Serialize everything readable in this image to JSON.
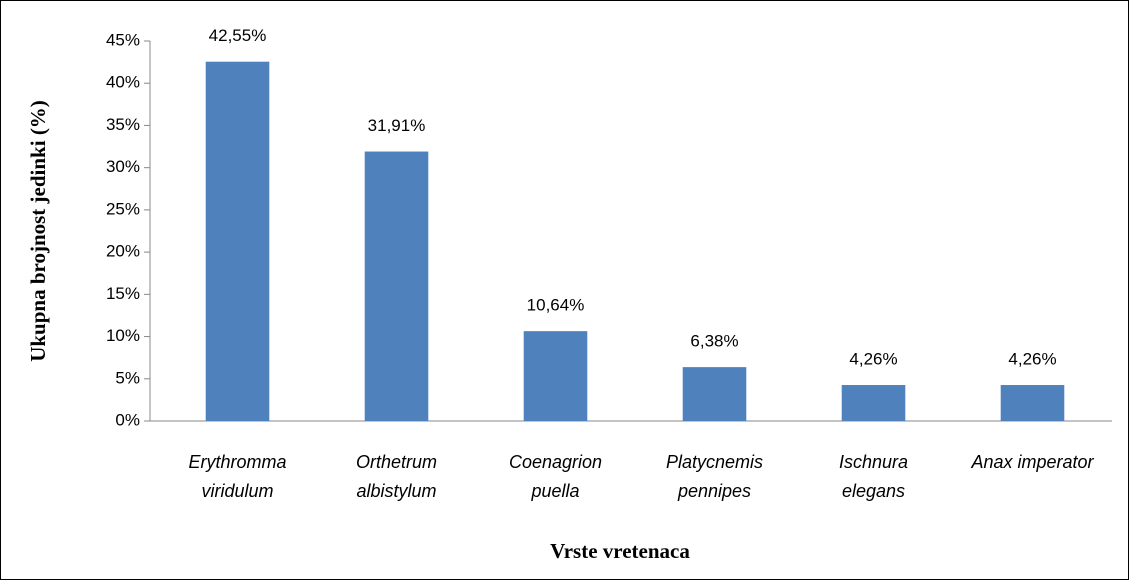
{
  "chart_data": {
    "type": "bar",
    "x_label": "Vrste vretenaca",
    "y_label": "Ukupna brojnost jedinki (%)",
    "categories": [
      [
        "Erythromma",
        "viridulum"
      ],
      [
        "Orthetrum",
        "albistylum"
      ],
      [
        "Coenagrion",
        "puella"
      ],
      [
        "Platycnemis",
        "pennipes"
      ],
      [
        "Ischnura",
        "elegans"
      ],
      [
        "Anax imperator"
      ]
    ],
    "values": [
      42.55,
      31.91,
      10.64,
      6.38,
      4.26,
      4.26
    ],
    "value_labels": [
      "42,55%",
      "31,91%",
      "10,64%",
      "6,38%",
      "4,26%",
      "4,26%"
    ],
    "color": "#4f81bd",
    "ylim": [
      0,
      45
    ],
    "yticks": [
      {
        "value": 0,
        "label": "0%"
      },
      {
        "value": 5,
        "label": "5%"
      },
      {
        "value": 10,
        "label": "10%"
      },
      {
        "value": 15,
        "label": "15%"
      },
      {
        "value": 20,
        "label": "20%"
      },
      {
        "value": 25,
        "label": "25%"
      },
      {
        "value": 30,
        "label": "30%"
      },
      {
        "value": 35,
        "label": "35%"
      },
      {
        "value": 40,
        "label": "40%"
      },
      {
        "value": 45,
        "label": "45%"
      }
    ],
    "grid": false
  }
}
